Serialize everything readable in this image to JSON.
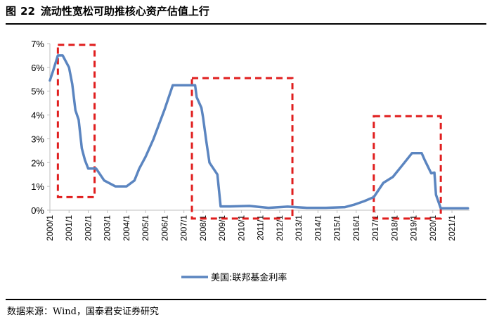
{
  "header": {
    "figure_label": "图",
    "figure_number": "22",
    "title": "流动性宽松可助推核心资产估值上行"
  },
  "footer": {
    "source": "数据来源：Wind，国泰君安证券研究"
  },
  "colors": {
    "series": "#5b85c0",
    "highlight_box": "#e01e1e",
    "axis": "#bfbfbf"
  },
  "chart_data": {
    "type": "line",
    "title": "流动性宽松可助推核心资产估值上行",
    "xlabel": "",
    "ylabel": "",
    "ylim": [
      0,
      7
    ],
    "yticks": [
      "0%",
      "1%",
      "2%",
      "3%",
      "4%",
      "5%",
      "6%",
      "7%"
    ],
    "xticks": [
      "2000/1",
      "2001/1",
      "2002/1",
      "2003/1",
      "2004/1",
      "2005/1",
      "2006/1",
      "2007/1",
      "2008/1",
      "2009/1",
      "2010/1",
      "2011/1",
      "2012/1",
      "2013/1",
      "2014/1",
      "2015/1",
      "2016/1",
      "2017/1",
      "2018/1",
      "2019/1",
      "2020/1",
      "2021/1"
    ],
    "grid": false,
    "legend_position": "bottom",
    "series": [
      {
        "name": "美国:联邦基金利率",
        "x": [
          "2000-01",
          "2000-03",
          "2000-06",
          "2000-09",
          "2001-01",
          "2001-03",
          "2001-05",
          "2001-07",
          "2001-09",
          "2001-11",
          "2002-01",
          "2002-06",
          "2002-11",
          "2003-06",
          "2004-01",
          "2004-06",
          "2004-09",
          "2005-01",
          "2005-06",
          "2006-01",
          "2006-06",
          "2007-01",
          "2007-08",
          "2007-09",
          "2007-12",
          "2008-01",
          "2008-03",
          "2008-05",
          "2008-10",
          "2008-12",
          "2009-06",
          "2010-06",
          "2011-06",
          "2012-06",
          "2013-06",
          "2014-06",
          "2015-06",
          "2015-12",
          "2016-06",
          "2016-12",
          "2017-06",
          "2017-12",
          "2018-06",
          "2018-12",
          "2019-06",
          "2019-08",
          "2019-12",
          "2020-02",
          "2020-03",
          "2020-06",
          "2021-06",
          "2021-11"
        ],
        "values": [
          5.45,
          5.85,
          6.5,
          6.5,
          6.0,
          5.3,
          4.2,
          3.8,
          2.6,
          2.1,
          1.75,
          1.75,
          1.25,
          1.0,
          1.0,
          1.25,
          1.75,
          2.25,
          3.0,
          4.25,
          5.25,
          5.25,
          5.25,
          4.75,
          4.3,
          3.9,
          2.9,
          2.0,
          1.5,
          0.16,
          0.16,
          0.18,
          0.1,
          0.15,
          0.1,
          0.1,
          0.13,
          0.24,
          0.38,
          0.55,
          1.15,
          1.4,
          1.9,
          2.4,
          2.4,
          2.1,
          1.55,
          1.58,
          0.65,
          0.08,
          0.08,
          0.08
        ]
      }
    ],
    "highlight_boxes": [
      {
        "x_start": "2000-06",
        "x_end": "2002-05",
        "y_low": 0.55,
        "y_high": 6.95
      },
      {
        "x_start": "2007-06",
        "x_end": "2012-09",
        "y_low": -0.35,
        "y_high": 5.55
      },
      {
        "x_start": "2016-12",
        "x_end": "2020-06",
        "y_low": -0.35,
        "y_high": 3.95
      }
    ]
  }
}
